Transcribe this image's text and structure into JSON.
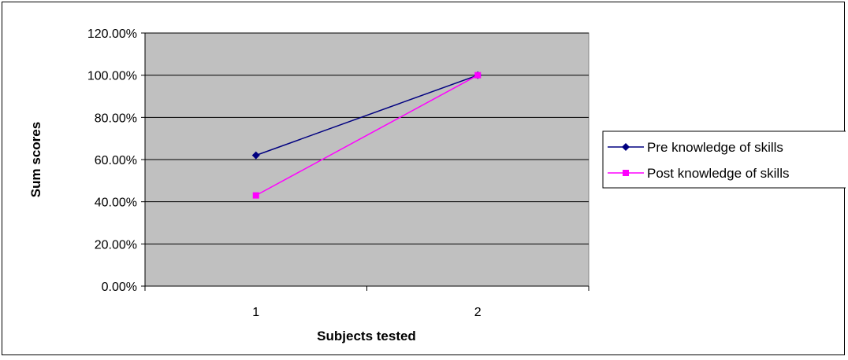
{
  "chart_data": {
    "type": "line",
    "xlabel": "Subjects tested",
    "ylabel": "Sum scores",
    "categories": [
      "1",
      "2"
    ],
    "ylim": [
      0,
      1.2
    ],
    "y_ticks": [
      0,
      0.2,
      0.4,
      0.6,
      0.8,
      1.0,
      1.2
    ],
    "y_tick_labels": [
      "0.00%",
      "20.00%",
      "40.00%",
      "60.00%",
      "80.00%",
      "100.00%",
      "120.00%"
    ],
    "grid": true,
    "legend_position": "right",
    "plot_background": "#c0c0c0",
    "series": [
      {
        "name": "Pre knowledge of skills",
        "values": [
          0.62,
          1.0
        ],
        "color": "#000080",
        "marker": "diamond"
      },
      {
        "name": "Post knowledge of skills",
        "values": [
          0.43,
          1.0
        ],
        "color": "#ff00ff",
        "marker": "square"
      }
    ]
  }
}
